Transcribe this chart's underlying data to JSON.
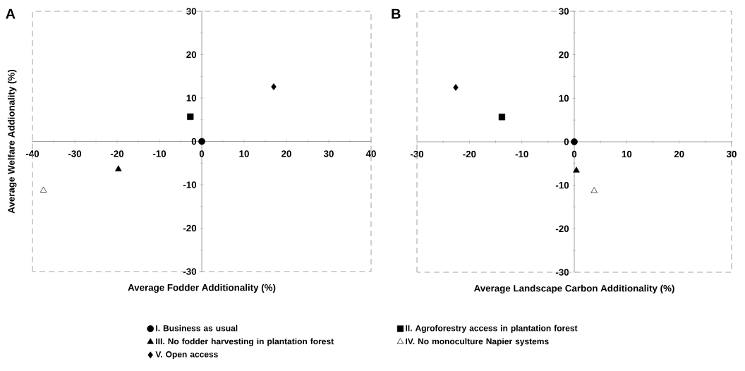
{
  "chart_data": [
    {
      "type": "scatter",
      "title": "A",
      "xlabel": "Average Fodder Additionality (%)",
      "ylabel": "Average Welfare Addionality (%)",
      "xlim": [
        -40,
        40
      ],
      "ylim": [
        -30,
        30
      ],
      "xticks": [
        -40,
        -30,
        -20,
        -10,
        0,
        10,
        20,
        30,
        40
      ],
      "yticks": [
        -30,
        -20,
        -10,
        0,
        10,
        20,
        30
      ],
      "legend": "bottom",
      "series": [
        {
          "name": "I. Business as usual",
          "marker": "circle",
          "color": "#000000",
          "x": [
            0
          ],
          "values": [
            0
          ]
        },
        {
          "name": "II. Agroforestry access in plantation forest",
          "marker": "square",
          "color": "#000000",
          "x": [
            -2.7
          ],
          "values": [
            5.7
          ]
        },
        {
          "name": "III. No fodder harvesting in plantation forest",
          "marker": "triangle",
          "color": "#000000",
          "x": [
            -19.7
          ],
          "values": [
            -6.4
          ]
        },
        {
          "name": "IV. No monoculture Napier systems",
          "marker": "triangle",
          "color": "#ffffff",
          "x": [
            -37.4
          ],
          "values": [
            -11.3
          ]
        },
        {
          "name": "V. Open access",
          "marker": "diamond",
          "color": "#000000",
          "x": [
            17.0
          ],
          "values": [
            12.6
          ]
        }
      ]
    },
    {
      "type": "scatter",
      "title": "B",
      "xlabel": "Average Landscape Carbon Additionality (%)",
      "xlim": [
        -30,
        30
      ],
      "ylim": [
        -30,
        30
      ],
      "xticks": [
        -30,
        -20,
        -10,
        0,
        10,
        20,
        30
      ],
      "yticks": [
        -30,
        -20,
        -10,
        0,
        10,
        20,
        30
      ],
      "series": [
        {
          "marker": "circle",
          "color": "#000000",
          "x": [
            0
          ],
          "values": [
            0
          ]
        },
        {
          "marker": "square",
          "color": "#000000",
          "x": [
            -13.8
          ],
          "values": [
            5.7
          ]
        },
        {
          "marker": "triangle",
          "color": "#000000",
          "x": [
            0.4
          ],
          "values": [
            -6.6
          ]
        },
        {
          "marker": "triangle",
          "color": "#ffffff",
          "x": [
            3.8
          ],
          "values": [
            -11.3
          ]
        },
        {
          "marker": "diamond",
          "color": "#000000",
          "x": [
            -22.6
          ],
          "values": [
            12.5
          ]
        }
      ]
    }
  ]
}
